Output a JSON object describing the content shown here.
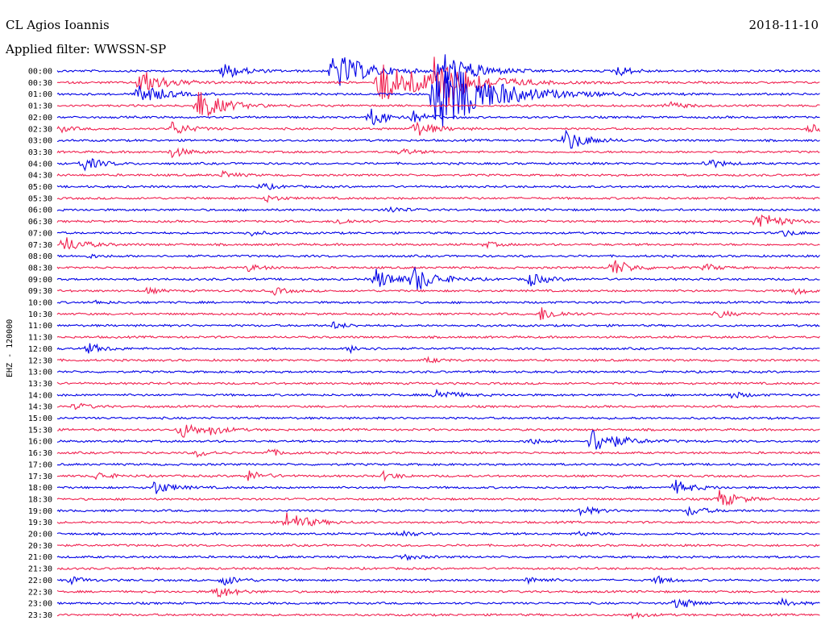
{
  "chart_data": {
    "type": "line",
    "title": "CL Agios Ioannis",
    "date": "2018-11-10",
    "filter_label": "Applied filter: WWSSN-SP",
    "ylabel": "EHZ - 120000",
    "tick_labels": [
      "00:00",
      "00:30",
      "01:00",
      "01:30",
      "02:00",
      "02:30",
      "03:00",
      "03:30",
      "04:00",
      "04:30",
      "05:00",
      "05:30",
      "06:00",
      "06:30",
      "07:00",
      "07:30",
      "08:00",
      "08:30",
      "09:00",
      "09:30",
      "10:00",
      "10:30",
      "11:00",
      "11:30",
      "12:00",
      "12:30",
      "13:00",
      "13:30",
      "14:00",
      "14:30",
      "15:00",
      "15:30",
      "16:00",
      "16:30",
      "17:00",
      "17:30",
      "18:00",
      "18:30",
      "19:00",
      "19:30",
      "20:00",
      "20:30",
      "21:00",
      "21:30",
      "22:00",
      "22:30",
      "23:00",
      "23:30"
    ],
    "trace_colors": [
      "#0000e6",
      "#f0204f"
    ],
    "events": [
      {
        "trace": 0,
        "minute": 6.5,
        "amp": 2.5
      },
      {
        "trace": 0,
        "minute": 22,
        "amp": 1.5
      },
      {
        "trace": 1,
        "minute": 3.2,
        "amp": 4
      },
      {
        "trace": 1,
        "minute": 13.8,
        "amp": 1.6
      },
      {
        "trace": 2,
        "minute": 3.2,
        "amp": 3.5
      },
      {
        "trace": 3,
        "minute": 5.5,
        "amp": 4.5
      },
      {
        "trace": 3,
        "minute": 24,
        "amp": 1.2
      },
      {
        "trace": 4,
        "minute": 12.3,
        "amp": 2.5
      },
      {
        "trace": 4,
        "minute": 14,
        "amp": 1.5
      },
      {
        "trace": 5,
        "minute": 0,
        "amp": 1
      },
      {
        "trace": 5,
        "minute": 4.5,
        "amp": 2
      },
      {
        "trace": 5,
        "minute": 14,
        "amp": 2.5
      },
      {
        "trace": 5,
        "minute": 29.5,
        "amp": 1.5
      },
      {
        "trace": 6,
        "minute": 20,
        "amp": 3
      },
      {
        "trace": 7,
        "minute": 4.5,
        "amp": 1.5
      },
      {
        "trace": 7,
        "minute": 13.5,
        "amp": 1
      },
      {
        "trace": 8,
        "minute": 1,
        "amp": 2
      },
      {
        "trace": 8,
        "minute": 25.5,
        "amp": 1.5
      },
      {
        "trace": 9,
        "minute": 6.5,
        "amp": 1
      },
      {
        "trace": 10,
        "minute": 8,
        "amp": 1
      },
      {
        "trace": 11,
        "minute": 8.2,
        "amp": 1
      },
      {
        "trace": 12,
        "minute": 13,
        "amp": 1
      },
      {
        "trace": 13,
        "minute": 11,
        "amp": 1
      },
      {
        "trace": 13,
        "minute": 27.5,
        "amp": 3
      },
      {
        "trace": 14,
        "minute": 7.5,
        "amp": 0.8
      },
      {
        "trace": 14,
        "minute": 28.5,
        "amp": 1
      },
      {
        "trace": 15,
        "minute": 0.2,
        "amp": 2.5
      },
      {
        "trace": 15,
        "minute": 16.8,
        "amp": 0.8
      },
      {
        "trace": 16,
        "minute": 1.2,
        "amp": 0.6
      },
      {
        "trace": 17,
        "minute": 7.5,
        "amp": 1
      },
      {
        "trace": 17,
        "minute": 21.8,
        "amp": 2.5
      },
      {
        "trace": 17,
        "minute": 25.5,
        "amp": 1
      },
      {
        "trace": 18,
        "minute": 12.5,
        "amp": 3
      },
      {
        "trace": 18,
        "minute": 14,
        "amp": 3.5
      },
      {
        "trace": 18,
        "minute": 18.5,
        "amp": 2
      },
      {
        "trace": 19,
        "minute": 3.5,
        "amp": 0.8
      },
      {
        "trace": 19,
        "minute": 8.5,
        "amp": 1
      },
      {
        "trace": 19,
        "minute": 29,
        "amp": 1
      },
      {
        "trace": 20,
        "minute": 1.5,
        "amp": 0.5
      },
      {
        "trace": 21,
        "minute": 19,
        "amp": 2
      },
      {
        "trace": 21,
        "minute": 26,
        "amp": 1
      },
      {
        "trace": 22,
        "minute": 10.8,
        "amp": 1
      },
      {
        "trace": 24,
        "minute": 1.2,
        "amp": 1.5
      },
      {
        "trace": 24,
        "minute": 11.5,
        "amp": 1
      },
      {
        "trace": 25,
        "minute": 14.5,
        "amp": 0.8
      },
      {
        "trace": 28,
        "minute": 14.8,
        "amp": 2
      },
      {
        "trace": 28,
        "minute": 26.5,
        "amp": 1
      },
      {
        "trace": 29,
        "minute": 0.7,
        "amp": 1
      },
      {
        "trace": 31,
        "minute": 4.8,
        "amp": 2.5
      },
      {
        "trace": 31,
        "minute": 6,
        "amp": 1.2
      },
      {
        "trace": 32,
        "minute": 21,
        "amp": 4
      },
      {
        "trace": 32,
        "minute": 18.5,
        "amp": 1
      },
      {
        "trace": 33,
        "minute": 5.5,
        "amp": 1
      },
      {
        "trace": 33,
        "minute": 8.3,
        "amp": 1
      },
      {
        "trace": 35,
        "minute": 1.5,
        "amp": 1.2
      },
      {
        "trace": 35,
        "minute": 7.5,
        "amp": 1.5
      },
      {
        "trace": 35,
        "minute": 12.8,
        "amp": 1.2
      },
      {
        "trace": 36,
        "minute": 3.8,
        "amp": 2
      },
      {
        "trace": 36,
        "minute": 24.3,
        "amp": 2
      },
      {
        "trace": 37,
        "minute": 26,
        "amp": 2.5
      },
      {
        "trace": 38,
        "minute": 20.5,
        "amp": 1.5
      },
      {
        "trace": 38,
        "minute": 24.8,
        "amp": 1.5
      },
      {
        "trace": 39,
        "minute": 9,
        "amp": 3
      },
      {
        "trace": 40,
        "minute": 13.5,
        "amp": 1
      },
      {
        "trace": 40,
        "minute": 20.5,
        "amp": 0.8
      },
      {
        "trace": 42,
        "minute": 13.5,
        "amp": 1
      },
      {
        "trace": 44,
        "minute": 0.5,
        "amp": 1
      },
      {
        "trace": 44,
        "minute": 6.5,
        "amp": 1.5
      },
      {
        "trace": 44,
        "minute": 18.5,
        "amp": 1.2
      },
      {
        "trace": 44,
        "minute": 23.5,
        "amp": 1.2
      },
      {
        "trace": 45,
        "minute": 6.2,
        "amp": 2
      },
      {
        "trace": 46,
        "minute": 24.3,
        "amp": 1.8
      },
      {
        "trace": 46,
        "minute": 28.5,
        "amp": 1
      },
      {
        "trace": 47,
        "minute": 22.5,
        "amp": 1
      }
    ],
    "big_events": [
      {
        "trace": 0,
        "minute": 10.8,
        "amp": 6
      },
      {
        "trace": 0,
        "minute": 15,
        "amp": 6
      },
      {
        "trace": 1,
        "minute": 12.6,
        "amp": 7
      },
      {
        "trace": 1,
        "minute": 14.8,
        "amp": 8
      },
      {
        "trace": 2,
        "minute": 14.8,
        "amp": 12
      }
    ]
  }
}
